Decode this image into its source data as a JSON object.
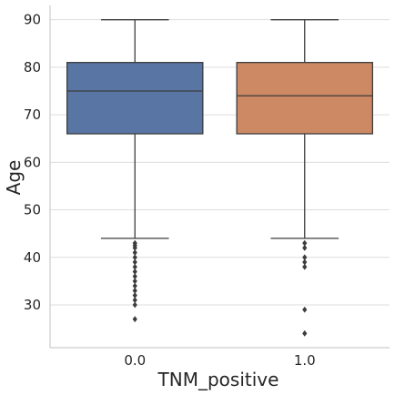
{
  "chart_data": {
    "type": "box",
    "xlabel": "TNM_positive",
    "ylabel": "Age",
    "ylim": [
      21,
      93
    ],
    "y_ticks": [
      30,
      40,
      50,
      60,
      70,
      80,
      90
    ],
    "grid": "horizontal",
    "categories": [
      "0.0",
      "1.0"
    ],
    "boxes": [
      {
        "category": "0.0",
        "color": "#5875a4",
        "whisker_low": 44,
        "q1": 66,
        "median": 75,
        "q3": 81,
        "whisker_high": 90,
        "outliers": [
          43,
          42.5,
          42,
          41,
          40,
          39,
          38,
          37,
          36,
          35,
          34,
          33,
          32,
          31,
          30,
          27
        ]
      },
      {
        "category": "1.0",
        "color": "#cc8963",
        "whisker_low": 44,
        "q1": 66,
        "median": 74,
        "q3": 81,
        "whisker_high": 90,
        "outliers": [
          43,
          42,
          40,
          39,
          38,
          29,
          24
        ]
      }
    ]
  }
}
